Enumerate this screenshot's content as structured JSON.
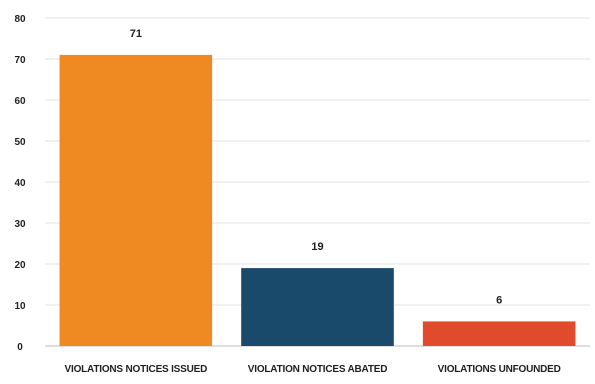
{
  "chart_data": {
    "type": "bar",
    "title": "",
    "xlabel": "",
    "ylabel": "",
    "categories": [
      "VIOLATIONS NOTICES ISSUED",
      "VIOLATION NOTICES ABATED",
      "VIOLATIONS UNFOUNDED"
    ],
    "values": [
      71,
      19,
      6
    ],
    "data_labels": [
      "71",
      "19",
      "6"
    ],
    "colors": [
      "#ef8a22",
      "#1a4a6b",
      "#e04b2b"
    ],
    "ylim": [
      0,
      80
    ],
    "yticks": [
      0,
      10,
      20,
      30,
      40,
      50,
      60,
      70,
      80
    ],
    "ytick_labels": [
      "0",
      "10",
      "20",
      "30",
      "40",
      "50",
      "60",
      "70",
      "80"
    ],
    "grid": true,
    "legend": "none"
  }
}
